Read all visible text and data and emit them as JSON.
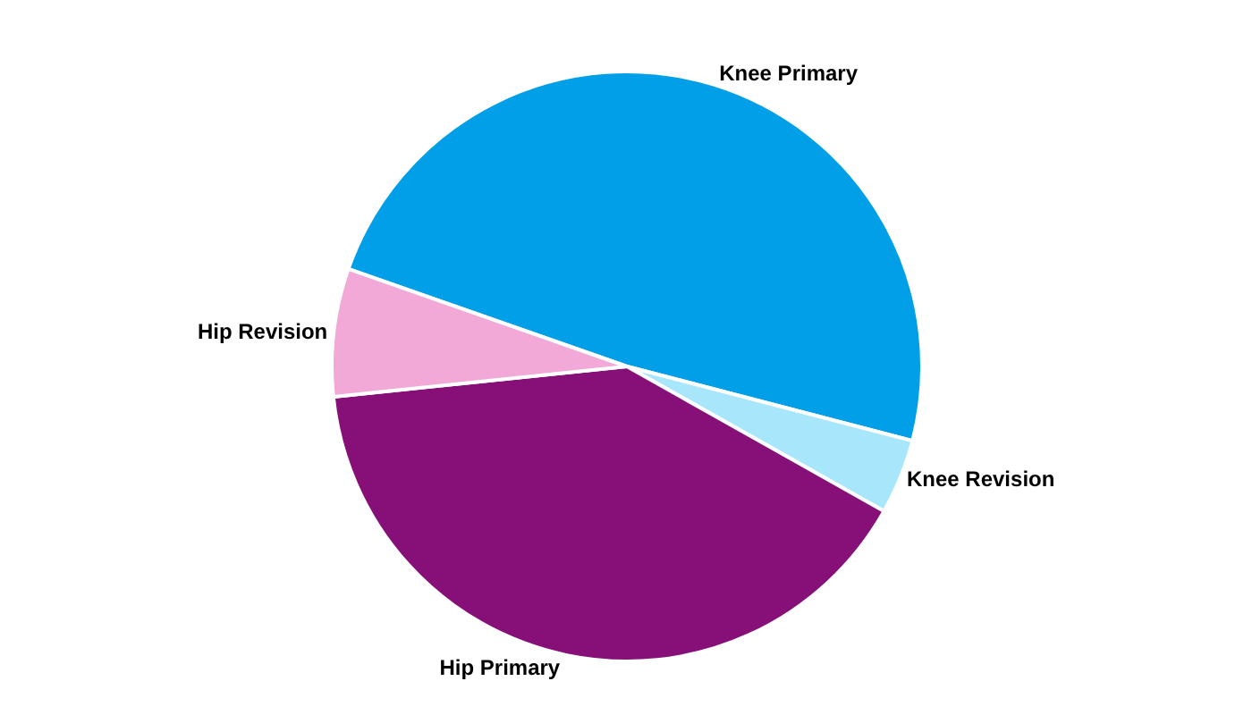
{
  "chart_data": {
    "type": "pie",
    "categories": [
      "Knee Primary",
      "Knee Revision",
      "Hip Primary",
      "Hip Revision"
    ],
    "values": [
      48.7,
      4.1,
      40.2,
      7.0
    ],
    "colors": [
      "#009fe8",
      "#a8e6fb",
      "#870f78",
      "#f2a9d8"
    ],
    "legend": false
  }
}
